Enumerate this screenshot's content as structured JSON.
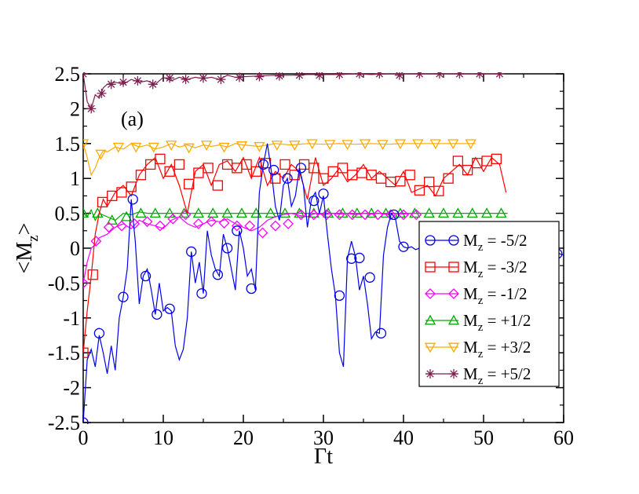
{
  "chart_data": {
    "type": "line",
    "panel_label": "(a)",
    "xlabel": "Γt",
    "ylabel_main": "<M",
    "ylabel_sub": "z",
    "ylabel_end": ">",
    "xlim": [
      0,
      60
    ],
    "ylim": [
      -2.5,
      2.5
    ],
    "xticks": [
      0,
      10,
      20,
      30,
      40,
      50,
      60
    ],
    "xtick_labels": [
      "0",
      "10",
      "20",
      "30",
      "40",
      "50",
      "60"
    ],
    "yticks": [
      -2.5,
      -2,
      -1.5,
      -1,
      -0.5,
      0,
      0.5,
      1,
      1.5,
      2,
      2.5
    ],
    "ytick_labels": [
      "-2.5",
      "-2",
      "-1.5",
      "-1",
      "-0.5",
      "0",
      "0.5",
      "1",
      "1.5",
      "2",
      "2.5"
    ],
    "legend_position": "right-middle",
    "series": [
      {
        "name": "M_z = -5/2",
        "label_main": "M",
        "label_sub": "z",
        "label_rest": " = -5/2",
        "color": "#0000ee",
        "marker": "circle",
        "x": [
          0,
          0.5,
          1,
          1.5,
          2,
          2.5,
          3,
          3.5,
          4,
          4.5,
          5,
          5.5,
          6,
          6.5,
          7,
          7.5,
          8,
          8.5,
          9,
          9.5,
          10,
          10.5,
          11,
          11.5,
          12,
          12.5,
          13,
          13.5,
          14,
          14.5,
          15,
          15.5,
          16,
          16.5,
          17,
          17.5,
          18,
          18.5,
          19,
          19.5,
          20,
          20.5,
          21,
          21.5,
          22,
          22.5,
          23,
          23.5,
          24,
          24.5,
          25,
          25.5,
          26,
          26.5,
          27,
          27.5,
          28,
          28.5,
          29,
          29.5,
          30,
          30.5,
          31,
          31.5,
          32,
          32.5,
          33,
          33.5,
          34,
          34.5,
          35,
          35.5,
          36,
          36.5,
          37,
          37.5,
          38,
          38.5,
          39,
          39.5,
          40,
          40.5,
          41,
          41.5,
          42,
          59,
          59.5,
          60
        ],
        "y": [
          -2.5,
          -1.6,
          -1.45,
          -1.7,
          -1.25,
          -1.5,
          -1.8,
          -1.4,
          -1.75,
          -1.0,
          -0.7,
          -0.3,
          0.7,
          0.1,
          -0.8,
          -0.4,
          -0.3,
          -0.6,
          -0.95,
          -0.5,
          -0.9,
          -0.85,
          -0.9,
          -1.4,
          -1.6,
          -1.45,
          -1.0,
          -0.05,
          -0.5,
          -0.2,
          -0.65,
          0.25,
          -0.1,
          -0.3,
          -0.4,
          0.2,
          0.0,
          -0.3,
          -0.6,
          0.25,
          0.0,
          -0.4,
          -0.3,
          -0.6,
          0.8,
          1.2,
          1.5,
          1.1,
          0.6,
          0.4,
          0.9,
          1.0,
          0.6,
          0.75,
          1.15,
          0.9,
          0.3,
          0.7,
          0.8,
          0.5,
          0.75,
          0.2,
          -0.3,
          -0.68,
          -1.5,
          -1.7,
          -0.15,
          0.1,
          -0.12,
          -0.6,
          -0.4,
          -0.8,
          -1.3,
          -1.2,
          -1.22,
          -0.1,
          0.3,
          0.5,
          0.42,
          0.1,
          0.02,
          0.0,
          0.02,
          -0.02,
          0.0,
          -0.05,
          -0.08,
          -0.1
        ],
        "marker_x": [
          0,
          2,
          5,
          6.2,
          7.8,
          9.2,
          10.8,
          13.5,
          14.8,
          16.8,
          18,
          19.2,
          21,
          22.5,
          23.8,
          25.5,
          27.2,
          28.8,
          30,
          32,
          33.5,
          34.5,
          35.8,
          37.2,
          38.8,
          40,
          59.2
        ],
        "marker_y": [
          -2.5,
          -1.22,
          -0.7,
          0.7,
          -0.4,
          -0.95,
          -0.87,
          -0.05,
          -0.65,
          -0.38,
          0.0,
          0.25,
          -0.58,
          1.2,
          1.12,
          1.0,
          1.15,
          0.68,
          0.78,
          -0.68,
          -0.15,
          -0.14,
          -0.42,
          -1.22,
          0.48,
          0.02,
          -0.08
        ]
      },
      {
        "name": "M_z = -3/2",
        "label_main": "M",
        "label_sub": "z",
        "label_rest": " = -3/2",
        "color": "#ff0000",
        "marker": "square",
        "x": [
          0,
          0.5,
          1,
          1.5,
          2,
          2.5,
          3,
          4,
          5,
          6,
          7,
          8,
          9,
          10,
          11,
          12,
          13,
          14,
          15,
          16,
          17,
          18,
          19,
          20,
          21,
          22,
          23,
          24,
          25,
          26,
          27,
          28,
          29,
          30,
          31,
          32,
          33,
          34,
          35,
          36,
          37,
          38,
          39,
          40,
          41,
          42,
          43,
          44,
          45,
          46,
          47,
          48,
          49,
          50,
          51,
          52,
          52.8
        ],
        "y": [
          -1.5,
          -0.9,
          -0.4,
          0.2,
          0.5,
          0.7,
          0.6,
          0.8,
          0.9,
          0.75,
          1.05,
          1.2,
          1.3,
          1.0,
          1.2,
          0.9,
          0.5,
          1.1,
          1.2,
          0.9,
          1.2,
          1.25,
          1.1,
          1.3,
          1.0,
          1.3,
          0.9,
          1.1,
          1.0,
          1.2,
          1.1,
          0.7,
          1.3,
          0.9,
          1.0,
          1.15,
          0.95,
          1.05,
          1.2,
          1.0,
          1.1,
          1.0,
          0.9,
          1.1,
          0.8,
          0.85,
          0.9,
          0.75,
          1.0,
          1.1,
          1.2,
          1.05,
          1.3,
          1.1,
          1.3,
          1.2,
          0.8
        ],
        "marker_x": [
          0,
          1.2,
          2.4,
          3.6,
          4.8,
          6.0,
          7.2,
          8.4,
          9.6,
          10.8,
          12.0,
          13.2,
          14.4,
          15.6,
          16.8,
          18.0,
          19.2,
          20.4,
          21.6,
          22.8,
          24.0,
          25.2,
          26.4,
          27.6,
          28.8,
          30.0,
          31.2,
          32.4,
          33.6,
          34.8,
          36.0,
          37.2,
          38.4,
          39.6,
          40.8,
          42.0,
          43.2,
          44.4,
          45.6,
          46.8,
          48.0,
          49.2,
          50.4,
          51.6
        ],
        "marker_y": [
          -1.5,
          -0.38,
          0.66,
          0.75,
          0.8,
          0.88,
          1.05,
          1.2,
          1.28,
          1.1,
          1.2,
          0.92,
          1.08,
          1.15,
          0.9,
          1.2,
          1.15,
          1.2,
          1.1,
          1.22,
          1.0,
          1.2,
          1.05,
          1.2,
          1.15,
          1.0,
          1.1,
          1.15,
          1.05,
          1.08,
          1.05,
          1.0,
          0.95,
          0.96,
          1.05,
          0.83,
          0.95,
          0.82,
          1.0,
          1.25,
          1.12,
          1.22,
          1.25,
          1.28
        ],
        "marker_x2": [],
        "marker_y2": []
      },
      {
        "name": "M_z = -1/2",
        "label_main": "M",
        "label_sub": "z",
        "label_rest": " = -1/2",
        "color": "#ff00ff",
        "marker": "diamond",
        "x": [
          0,
          0.5,
          1,
          1.5,
          2,
          3,
          4,
          5,
          6,
          7,
          8,
          9,
          10,
          11,
          12,
          13,
          14,
          15,
          16,
          17,
          18,
          19,
          20,
          21,
          22,
          23,
          24,
          25,
          26,
          27,
          28,
          29,
          30,
          31,
          32,
          33,
          34,
          35,
          36,
          37,
          38,
          39,
          40,
          41,
          42
        ],
        "y": [
          -0.5,
          -0.2,
          0.0,
          0.05,
          0.15,
          0.2,
          0.3,
          0.35,
          0.28,
          0.4,
          0.35,
          0.32,
          0.28,
          0.4,
          0.45,
          0.35,
          0.3,
          0.35,
          0.4,
          0.38,
          0.42,
          0.35,
          0.3,
          0.25,
          0.3,
          0.4,
          0.45,
          0.48,
          0.5,
          0.47,
          0.45,
          0.5,
          0.48,
          0.5,
          0.49,
          0.5,
          0.48,
          0.5,
          0.49,
          0.5,
          0.48,
          0.5,
          0.49,
          0.5,
          0.5
        ],
        "marker_x": [
          0,
          1.6,
          3.2,
          4.8,
          6.4,
          8.0,
          9.6,
          11.2,
          12.8,
          14.4,
          16.0,
          17.6,
          19.2,
          20.8,
          22.4,
          24.0,
          25.6,
          27.2,
          28.8,
          30.4,
          32.0,
          33.6,
          35.2,
          36.8,
          38.4,
          40.0,
          41.6
        ],
        "marker_y": [
          -0.5,
          0.1,
          0.3,
          0.32,
          0.35,
          0.38,
          0.32,
          0.42,
          0.48,
          0.35,
          0.38,
          0.36,
          0.32,
          0.32,
          0.22,
          0.32,
          0.35,
          0.48,
          0.48,
          0.48,
          0.48,
          0.48,
          0.48,
          0.48,
          0.48,
          0.48,
          0.48
        ]
      },
      {
        "name": "M_z = +1/2",
        "label_main": "M",
        "label_sub": "z",
        "label_rest": " = +1/2",
        "color": "#00aa00",
        "marker": "triangle-up",
        "x": [
          0,
          0.5,
          1,
          1.5,
          2,
          3,
          4,
          5,
          6,
          7,
          8,
          9,
          10,
          12,
          14,
          16,
          18,
          20,
          22,
          24,
          26,
          28,
          30,
          32,
          34,
          36,
          38,
          40,
          42,
          44,
          46,
          48,
          50,
          52,
          53
        ],
        "y": [
          0.5,
          0.45,
          0.55,
          0.4,
          0.5,
          0.45,
          0.4,
          0.5,
          0.48,
          0.52,
          0.5,
          0.5,
          0.5,
          0.5,
          0.5,
          0.5,
          0.5,
          0.5,
          0.5,
          0.5,
          0.5,
          0.5,
          0.5,
          0.5,
          0.5,
          0.5,
          0.5,
          0.5,
          0.5,
          0.5,
          0.5,
          0.5,
          0.5,
          0.5,
          0.5
        ],
        "marker_x": [
          0,
          1.8,
          3.6,
          5.4,
          7.2,
          9.0,
          10.8,
          12.6,
          14.4,
          16.2,
          18.0,
          19.8,
          21.6,
          23.4,
          25.2,
          27.0,
          28.8,
          30.6,
          32.4,
          34.2,
          36.0,
          37.8,
          39.6,
          41.4,
          43.2,
          45.0,
          46.8,
          48.6,
          50.4,
          52.2
        ],
        "marker_y": [
          0.5,
          0.5,
          0.4,
          0.45,
          0.5,
          0.5,
          0.5,
          0.5,
          0.5,
          0.5,
          0.5,
          0.5,
          0.5,
          0.5,
          0.5,
          0.5,
          0.5,
          0.5,
          0.5,
          0.5,
          0.5,
          0.5,
          0.5,
          0.5,
          0.5,
          0.5,
          0.5,
          0.5,
          0.5,
          0.5
        ]
      },
      {
        "name": "M_z = +3/2",
        "label_main": "M",
        "label_sub": "z",
        "label_rest": " = +3/2",
        "color": "#ffaa00",
        "marker": "triangle-down",
        "x": [
          0,
          0.5,
          1,
          1.5,
          2,
          2.5,
          3,
          4,
          5,
          6,
          7,
          8,
          9,
          10,
          11,
          12,
          13,
          14,
          15,
          16,
          17,
          18,
          19,
          20,
          22,
          24,
          26,
          28,
          30,
          32,
          34,
          36,
          38,
          40,
          42,
          44,
          46,
          48,
          49
        ],
        "y": [
          1.5,
          1.3,
          1.05,
          1.15,
          1.3,
          1.4,
          1.38,
          1.45,
          1.42,
          1.5,
          1.45,
          1.48,
          1.42,
          1.45,
          1.5,
          1.45,
          1.48,
          1.44,
          1.48,
          1.46,
          1.48,
          1.45,
          1.5,
          1.48,
          1.46,
          1.5,
          1.48,
          1.5,
          1.49,
          1.5,
          1.49,
          1.5,
          1.49,
          1.5,
          1.5,
          1.5,
          1.5,
          1.5,
          1.5
        ],
        "marker_x": [
          0,
          2.2,
          4.4,
          6.6,
          8.8,
          11.0,
          13.2,
          15.4,
          17.6,
          19.8,
          22.0,
          24.2,
          26.4,
          28.6,
          30.8,
          33.0,
          35.2,
          37.4,
          39.6,
          41.8,
          44.0,
          46.2,
          48.4
        ],
        "marker_y": [
          1.5,
          1.35,
          1.45,
          1.45,
          1.45,
          1.48,
          1.44,
          1.48,
          1.45,
          1.47,
          1.46,
          1.48,
          1.48,
          1.5,
          1.49,
          1.49,
          1.5,
          1.49,
          1.5,
          1.5,
          1.5,
          1.5,
          1.5
        ]
      },
      {
        "name": "M_z = +5/2",
        "label_main": "M",
        "label_sub": "z",
        "label_rest": " = +5/2",
        "color": "#7f1f4f",
        "marker": "star",
        "x": [
          0,
          0.5,
          1,
          1.5,
          2,
          2.5,
          3,
          4,
          5,
          6,
          7,
          8,
          9,
          10,
          11,
          12,
          13,
          14,
          15,
          16,
          17,
          18,
          19,
          20,
          22,
          24,
          26,
          28,
          30,
          32,
          34,
          36,
          38,
          40,
          42,
          44,
          46,
          48,
          50,
          52
        ],
        "y": [
          2.5,
          2.1,
          2.0,
          2.2,
          2.15,
          2.3,
          2.35,
          2.38,
          2.35,
          2.42,
          2.38,
          2.4,
          2.35,
          2.45,
          2.4,
          2.45,
          2.42,
          2.45,
          2.43,
          2.45,
          2.42,
          2.48,
          2.45,
          2.46,
          2.47,
          2.48,
          2.48,
          2.49,
          2.49,
          2.49,
          2.5,
          2.49,
          2.5,
          2.5,
          2.5,
          2.5,
          2.5,
          2.5,
          2.5,
          2.5
        ],
        "marker_x": [
          0,
          1.0,
          2.3,
          3.5,
          5.0,
          6.8,
          8.7,
          10.8,
          12.8,
          15.0,
          17.2,
          19.5,
          22.0,
          24.5,
          27.0,
          29.5,
          32.0,
          34.5,
          37.0,
          39.5,
          42.0,
          44.5,
          47.0,
          49.5,
          52.0
        ],
        "marker_y": [
          2.5,
          2.0,
          2.22,
          2.35,
          2.38,
          2.4,
          2.35,
          2.44,
          2.42,
          2.44,
          2.42,
          2.45,
          2.46,
          2.47,
          2.48,
          2.48,
          2.49,
          2.5,
          2.5,
          2.48,
          2.5,
          2.5,
          2.5,
          2.5,
          2.5
        ]
      }
    ]
  }
}
